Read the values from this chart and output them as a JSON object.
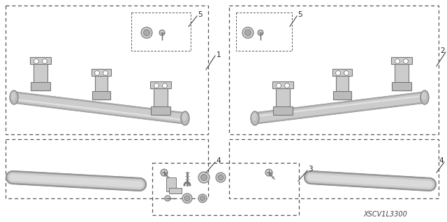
{
  "bg_color": "#ffffff",
  "diagram_id": "XSCV1L3300",
  "fig_width": 6.4,
  "fig_height": 3.19,
  "dpi": 100,
  "line_color": "#555555",
  "part_fill": "#d8d8d8",
  "part_edge": "#444444",
  "label_color": "#222222",
  "label_fontsize": 7.5,
  "diagram_label": "XSCV1L3300",
  "diagram_label_fontsize": 7,
  "diagram_label_color": "#444444"
}
